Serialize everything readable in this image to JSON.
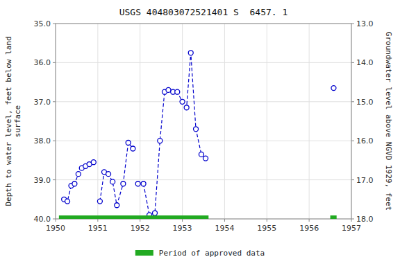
{
  "chart_data": {
    "type": "line",
    "title": "USGS 404803072521401 S  6457. 1",
    "ylabel": "Depth to water level, feet below land\nsurface",
    "y2label": "Groundwater level above NGVD 1929, feet",
    "x": [
      1950.2,
      1950.28,
      1950.37,
      1950.45,
      1950.54,
      1950.62,
      1950.71,
      1950.8,
      1950.9,
      null,
      1951.05,
      1951.15,
      1951.25,
      1951.35,
      1951.45,
      1951.6,
      1951.72,
      1951.83,
      null,
      1951.95,
      1952.08,
      1952.22,
      1952.35,
      1952.47,
      1952.58,
      1952.67,
      1952.78,
      1952.88,
      1953.0,
      1953.1,
      1953.2,
      1953.32,
      1953.45,
      1953.55,
      null,
      1956.58
    ],
    "series": [
      {
        "color": "#0000cc",
        "marker": "circle",
        "line_style": "dashed",
        "values": [
          39.5,
          39.55,
          39.15,
          39.1,
          38.85,
          38.7,
          38.65,
          38.6,
          38.55,
          null,
          39.55,
          38.8,
          38.85,
          39.05,
          39.65,
          39.1,
          38.05,
          38.2,
          null,
          39.1,
          39.1,
          39.9,
          39.85,
          38.0,
          36.75,
          36.7,
          36.75,
          36.75,
          37.0,
          37.15,
          35.75,
          37.7,
          38.35,
          38.45,
          null,
          36.65
        ]
      }
    ],
    "xlim": [
      1950,
      1957
    ],
    "xticks": [
      1950,
      1951,
      1952,
      1953,
      1954,
      1955,
      1956,
      1957
    ],
    "ylim": [
      40.0,
      35.0
    ],
    "yticks": [
      {
        "value": 35.0,
        "label": "35.0"
      },
      {
        "value": 36.0,
        "label": "36.0"
      },
      {
        "value": 37.0,
        "label": "37.0"
      },
      {
        "value": 38.0,
        "label": "38.0"
      },
      {
        "value": 39.0,
        "label": "39.0"
      },
      {
        "value": 40.0,
        "label": "40.0"
      }
    ],
    "y2lim": [
      18.0,
      13.0
    ],
    "y2ticks": [
      {
        "value": 18.0,
        "label": "18.0"
      },
      {
        "value": 17.0,
        "label": "17.0"
      },
      {
        "value": 16.0,
        "label": "16.0"
      },
      {
        "value": 15.0,
        "label": "15.0"
      },
      {
        "value": 14.0,
        "label": "14.0"
      },
      {
        "value": 13.0,
        "label": "13.0"
      }
    ],
    "grid": true,
    "legend": "bottom",
    "approved_periods": {
      "name": "Period of approved data",
      "color": "#22aa22",
      "x_start": [
        1950.08,
        1956.5
      ],
      "x_end": [
        1953.62,
        1956.65
      ],
      "y": [
        40.0,
        40.0
      ]
    }
  }
}
